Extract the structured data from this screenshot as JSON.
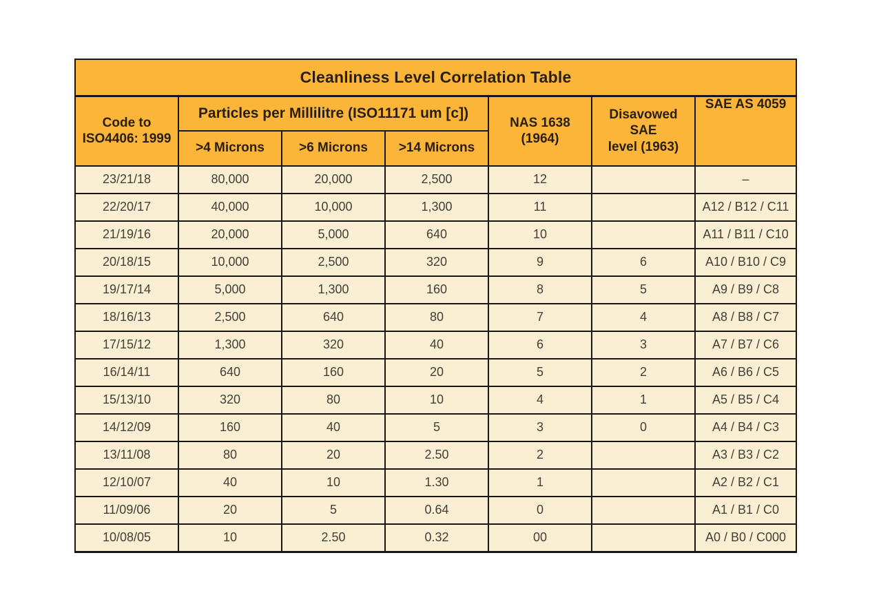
{
  "page": {
    "background_color": "#FFFFFF"
  },
  "colors": {
    "header_background": "#FBB63A",
    "row_background": "#FAEED3",
    "border": "#191510",
    "header_text": "#2A1F0C",
    "data_text": "#43403A"
  },
  "chart_data": {
    "type": "table",
    "title": "Cleanliness Level Correlation Table",
    "header": {
      "code": {
        "line1": "Code to",
        "line2": "ISO4406: 1999"
      },
      "particles_group": "Particles per Millilitre (ISO11171 um [c])",
      "particles_subcolumns": [
        ">4 Microns",
        ">6 Microns",
        ">14 Microns"
      ],
      "nas": {
        "line1": "NAS 1638",
        "line2": "(1964)"
      },
      "sae_disavowed": {
        "line1": "Disavowed SAE",
        "line2": "level (1963)"
      },
      "sae_as": "SAE AS 4059"
    },
    "columns": [
      "Code to ISO4406: 1999",
      ">4 Microns",
      ">6 Microns",
      ">14 Microns",
      "NAS 1638 (1964)",
      "Disavowed SAE level (1963)",
      "SAE AS 4059"
    ],
    "rows": [
      [
        "23/21/18",
        "80,000",
        "20,000",
        "2,500",
        "12",
        "",
        "–"
      ],
      [
        "22/20/17",
        "40,000",
        "10,000",
        "1,300",
        "11",
        "",
        "A12 / B12 / C11"
      ],
      [
        "21/19/16",
        "20,000",
        "5,000",
        "640",
        "10",
        "",
        "A11 / B11 / C10"
      ],
      [
        "20/18/15",
        "10,000",
        "2,500",
        "320",
        "9",
        "6",
        "A10 / B10 / C9"
      ],
      [
        "19/17/14",
        "5,000",
        "1,300",
        "160",
        "8",
        "5",
        "A9 / B9 / C8"
      ],
      [
        "18/16/13",
        "2,500",
        "640",
        "80",
        "7",
        "4",
        "A8 / B8 / C7"
      ],
      [
        "17/15/12",
        "1,300",
        "320",
        "40",
        "6",
        "3",
        "A7 / B7 / C6"
      ],
      [
        "16/14/11",
        "640",
        "160",
        "20",
        "5",
        "2",
        "A6 / B6 / C5"
      ],
      [
        "15/13/10",
        "320",
        "80",
        "10",
        "4",
        "1",
        "A5 / B5 / C4"
      ],
      [
        "14/12/09",
        "160",
        "40",
        "5",
        "3",
        "0",
        "A4 / B4 / C3"
      ],
      [
        "13/11/08",
        "80",
        "20",
        "2.50",
        "2",
        "",
        "A3 / B3 / C2"
      ],
      [
        "12/10/07",
        "40",
        "10",
        "1.30",
        "1",
        "",
        "A2 / B2 / C1"
      ],
      [
        "11/09/06",
        "20",
        "5",
        "0.64",
        "0",
        "",
        "A1 / B1 / C0"
      ],
      [
        "10/08/05",
        "10",
        "2.50",
        "0.32",
        "00",
        "",
        "A0 / B0 / C000"
      ]
    ]
  }
}
